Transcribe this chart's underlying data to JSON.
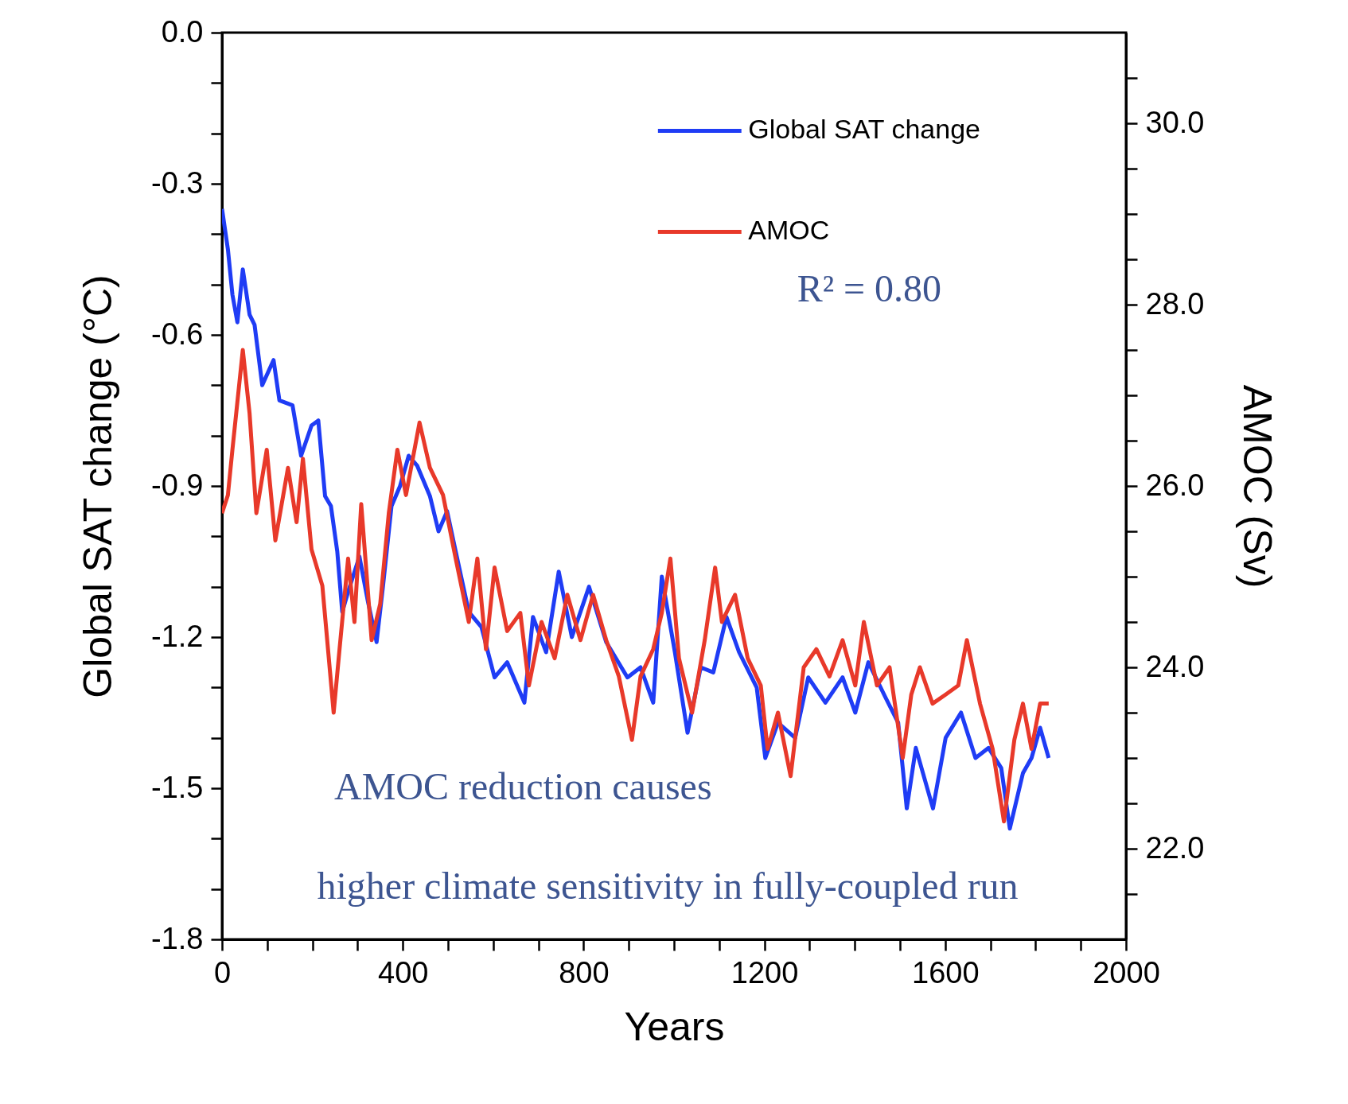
{
  "chart_data": {
    "type": "line",
    "xlabel": "Years",
    "ylabel": "Global SAT change (°C)",
    "y2label": "AMOC (Sv)",
    "xlim": [
      0,
      2000
    ],
    "xticks": [
      0,
      {
        "value": 100,
        "label": null
      },
      {
        "value": 200,
        "label": null
      },
      {
        "value": 300,
        "label": null
      },
      400,
      {
        "value": 500,
        "label": null
      },
      {
        "value": 600,
        "label": null
      },
      {
        "value": 700,
        "label": null
      },
      800,
      {
        "value": 900,
        "label": null
      },
      {
        "value": 1000,
        "label": null
      },
      {
        "value": 1100,
        "label": null
      },
      1200,
      {
        "value": 1300,
        "label": null
      },
      {
        "value": 1400,
        "label": null
      },
      {
        "value": 1500,
        "label": null
      },
      1600,
      {
        "value": 1700,
        "label": null
      },
      {
        "value": 1800,
        "label": null
      },
      {
        "value": 1900,
        "label": null
      },
      2000
    ],
    "ylim": [
      -1.8,
      0
    ],
    "yticks": [
      {
        "value": 0,
        "label": "0.0"
      },
      {
        "value": -0.1,
        "label": null
      },
      {
        "value": -0.2,
        "label": null
      },
      -0.3,
      {
        "value": -0.4,
        "label": null
      },
      {
        "value": -0.5,
        "label": null
      },
      -0.6,
      {
        "value": -0.7,
        "label": null
      },
      {
        "value": -0.8,
        "label": null
      },
      -0.9,
      {
        "value": -1.0,
        "label": null
      },
      {
        "value": -1.1,
        "label": null
      },
      -1.2,
      {
        "value": -1.3,
        "label": null
      },
      {
        "value": -1.4,
        "label": null
      },
      -1.5,
      {
        "value": -1.6,
        "label": null
      },
      {
        "value": -1.7,
        "label": null
      },
      -1.8
    ],
    "y2lim": [
      21,
      31
    ],
    "y2ticks": [
      {
        "value": 21.5,
        "label": null
      },
      {
        "value": 22,
        "label": "22.0"
      },
      {
        "value": 22.5,
        "label": null
      },
      {
        "value": 23,
        "label": null
      },
      {
        "value": 23.5,
        "label": null
      },
      {
        "value": 24,
        "label": "24.0"
      },
      {
        "value": 24.5,
        "label": null
      },
      {
        "value": 25,
        "label": null
      },
      {
        "value": 25.5,
        "label": null
      },
      {
        "value": 26,
        "label": "26.0"
      },
      {
        "value": 26.5,
        "label": null
      },
      {
        "value": 27,
        "label": null
      },
      {
        "value": 27.5,
        "label": null
      },
      {
        "value": 28,
        "label": "28.0"
      },
      {
        "value": 28.5,
        "label": null
      },
      {
        "value": 29,
        "label": null
      },
      {
        "value": 29.5,
        "label": null
      },
      {
        "value": 30,
        "label": "30.0"
      },
      {
        "value": 30.5,
        "label": null
      }
    ],
    "legend": "top right",
    "annotations": [
      "R² = 0.80",
      "AMOC reduction causes",
      "higher climate sensitivity in fully-coupled run"
    ],
    "series": [
      {
        "name": "Global SAT change",
        "color": "#1f3cf5",
        "x": [
          0,
          13,
          23,
          34,
          46,
          61,
          72,
          89,
          114,
          127,
          156,
          175,
          198,
          213,
          228,
          241,
          255,
          266,
          279,
          304,
          323,
          342,
          356,
          375,
          394,
          413,
          432,
          460,
          479,
          498,
          517,
          546,
          574,
          603,
          631,
          669,
          688,
          717,
          745,
          774,
          812,
          850,
          897,
          926,
          954,
          973,
          1002,
          1030,
          1059,
          1087,
          1116,
          1144,
          1183,
          1202,
          1230,
          1268,
          1297,
          1335,
          1373,
          1401,
          1430,
          1468,
          1496,
          1515,
          1535,
          1573,
          1601,
          1635,
          1667,
          1696,
          1724,
          1743,
          1772,
          1791,
          1810,
          1829
        ],
        "values": [
          -0.35,
          -0.43,
          -0.52,
          -0.575,
          -0.47,
          -0.56,
          -0.58,
          -0.7,
          -0.65,
          -0.73,
          -0.74,
          -0.84,
          -0.78,
          -0.77,
          -0.92,
          -0.94,
          -1.03,
          -1.15,
          -1.11,
          -1.04,
          -1.13,
          -1.21,
          -1.1,
          -0.94,
          -0.9,
          -0.84,
          -0.86,
          -0.92,
          -0.99,
          -0.95,
          -1.03,
          -1.15,
          -1.18,
          -1.28,
          -1.25,
          -1.33,
          -1.16,
          -1.23,
          -1.07,
          -1.2,
          -1.1,
          -1.21,
          -1.28,
          -1.26,
          -1.33,
          -1.08,
          -1.23,
          -1.39,
          -1.26,
          -1.27,
          -1.16,
          -1.23,
          -1.3,
          -1.44,
          -1.37,
          -1.4,
          -1.28,
          -1.33,
          -1.28,
          -1.35,
          -1.25,
          -1.32,
          -1.37,
          -1.54,
          -1.42,
          -1.54,
          -1.4,
          -1.35,
          -1.44,
          -1.42,
          -1.46,
          -1.58,
          -1.47,
          -1.44,
          -1.38,
          -1.44
        ]
      },
      {
        "name": "AMOC",
        "color": "#e8392a",
        "axis": "y2",
        "x": [
          0,
          13,
          23,
          46,
          61,
          76,
          99,
          118,
          146,
          165,
          179,
          198,
          222,
          247,
          260,
          279,
          293,
          308,
          331,
          350,
          369,
          388,
          407,
          437,
          460,
          489,
          517,
          546,
          565,
          584,
          603,
          631,
          660,
          679,
          707,
          736,
          764,
          793,
          821,
          850,
          878,
          907,
          926,
          954,
          973,
          992,
          1011,
          1040,
          1068,
          1091,
          1106,
          1135,
          1163,
          1192,
          1207,
          1230,
          1258,
          1287,
          1315,
          1344,
          1373,
          1401,
          1420,
          1449,
          1477,
          1506,
          1525,
          1544,
          1572,
          1601,
          1629,
          1648,
          1677,
          1705,
          1730,
          1753,
          1772,
          1791,
          1810,
          1829
        ],
        "values": [
          25.7,
          25.9,
          26.4,
          27.5,
          26.8,
          25.7,
          26.4,
          25.4,
          26.2,
          25.6,
          26.3,
          25.3,
          24.9,
          23.5,
          24.2,
          25.2,
          24.5,
          25.8,
          24.3,
          24.7,
          25.7,
          26.4,
          25.9,
          26.7,
          26.2,
          25.9,
          25.2,
          24.5,
          25.2,
          24.2,
          25.1,
          24.4,
          24.6,
          23.8,
          24.5,
          24.1,
          24.8,
          24.3,
          24.8,
          24.3,
          23.9,
          23.2,
          23.9,
          24.2,
          24.6,
          25.2,
          24.1,
          23.5,
          24.3,
          25.1,
          24.5,
          24.8,
          24.1,
          23.8,
          23.1,
          23.5,
          22.8,
          24.0,
          24.2,
          23.9,
          24.3,
          23.8,
          24.5,
          23.8,
          24.0,
          23.0,
          23.7,
          24.0,
          23.6,
          23.7,
          23.8,
          24.3,
          23.6,
          23.1,
          22.3,
          23.2,
          23.6,
          23.1,
          23.6,
          23.6
        ]
      }
    ]
  }
}
